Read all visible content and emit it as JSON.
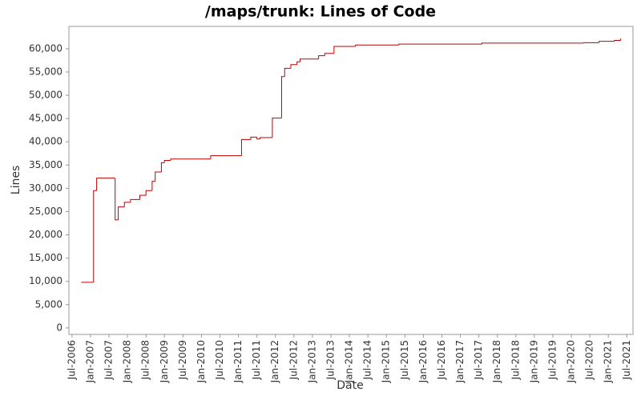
{
  "chart_data": {
    "type": "line",
    "step": "post",
    "title": "/maps/trunk: Lines of Code",
    "x_label": "Date",
    "y_label": "Lines",
    "color": "#c00000",
    "x": [
      "2006-10",
      "2007-02",
      "2007-03",
      "2007-09",
      "2007-10",
      "2007-12",
      "2008-02",
      "2008-05",
      "2008-07",
      "2008-09",
      "2008-10",
      "2008-12",
      "2009-01",
      "2009-03",
      "2010-04",
      "2011-02",
      "2011-05",
      "2011-07",
      "2011-08",
      "2011-12",
      "2012-03",
      "2012-04",
      "2012-06",
      "2012-08",
      "2012-09",
      "2013-03",
      "2013-05",
      "2013-08",
      "2014-03",
      "2015-05",
      "2017-08",
      "2020-05",
      "2020-10",
      "2021-03",
      "2021-05"
    ],
    "values": [
      9800,
      29500,
      32200,
      23200,
      26000,
      27000,
      27600,
      28500,
      29500,
      31500,
      33500,
      35500,
      36000,
      36300,
      37000,
      40500,
      41000,
      40600,
      40900,
      45100,
      54000,
      55800,
      56600,
      57200,
      57800,
      58500,
      59000,
      60500,
      60800,
      61000,
      61200,
      61300,
      61600,
      61800,
      62200
    ],
    "xlim": [
      "2006-06",
      "2021-09"
    ],
    "xticks": [
      {
        "value": "2006-07",
        "label": "Jul-2006"
      },
      {
        "value": "2007-01",
        "label": "Jan-2007"
      },
      {
        "value": "2007-07",
        "label": "Jul-2007"
      },
      {
        "value": "2008-01",
        "label": "Jan-2008"
      },
      {
        "value": "2008-07",
        "label": "Jul-2008"
      },
      {
        "value": "2009-01",
        "label": "Jan-2009"
      },
      {
        "value": "2009-07",
        "label": "Jul-2009"
      },
      {
        "value": "2010-01",
        "label": "Jan-2010"
      },
      {
        "value": "2010-07",
        "label": "Jul-2010"
      },
      {
        "value": "2011-01",
        "label": "Jan-2011"
      },
      {
        "value": "2011-07",
        "label": "Jul-2011"
      },
      {
        "value": "2012-01",
        "label": "Jan-2012"
      },
      {
        "value": "2012-07",
        "label": "Jul-2012"
      },
      {
        "value": "2013-01",
        "label": "Jan-2013"
      },
      {
        "value": "2013-07",
        "label": "Jul-2013"
      },
      {
        "value": "2014-01",
        "label": "Jan-2014"
      },
      {
        "value": "2014-07",
        "label": "Jul-2014"
      },
      {
        "value": "2015-01",
        "label": "Jan-2015"
      },
      {
        "value": "2015-07",
        "label": "Jul-2015"
      },
      {
        "value": "2016-01",
        "label": "Jan-2016"
      },
      {
        "value": "2016-07",
        "label": "Jul-2016"
      },
      {
        "value": "2017-01",
        "label": "Jan-2017"
      },
      {
        "value": "2017-07",
        "label": "Jul-2017"
      },
      {
        "value": "2018-01",
        "label": "Jan-2018"
      },
      {
        "value": "2018-07",
        "label": "Jul-2018"
      },
      {
        "value": "2019-01",
        "label": "Jan-2019"
      },
      {
        "value": "2019-07",
        "label": "Jul-2019"
      },
      {
        "value": "2020-01",
        "label": "Jan-2020"
      },
      {
        "value": "2020-07",
        "label": "Jul-2020"
      },
      {
        "value": "2021-01",
        "label": "Jan-2021"
      },
      {
        "value": "2021-07",
        "label": "Jul-2021"
      }
    ],
    "ylim": [
      -1400,
      64800
    ],
    "yticks": [
      0,
      {
        "value": 5000,
        "label": "5,000"
      },
      {
        "value": 10000,
        "label": "10,000"
      },
      {
        "value": 15000,
        "label": "15,000"
      },
      {
        "value": 20000,
        "label": "20,000"
      },
      {
        "value": 25000,
        "label": "25,000"
      },
      {
        "value": 30000,
        "label": "30,000"
      },
      {
        "value": 35000,
        "label": "35,000"
      },
      {
        "value": 40000,
        "label": "40,000"
      },
      {
        "value": 45000,
        "label": "45,000"
      },
      {
        "value": 50000,
        "label": "50,000"
      },
      {
        "value": 55000,
        "label": "55,000"
      },
      {
        "value": 60000,
        "label": "60,000"
      }
    ],
    "grid": false
  }
}
